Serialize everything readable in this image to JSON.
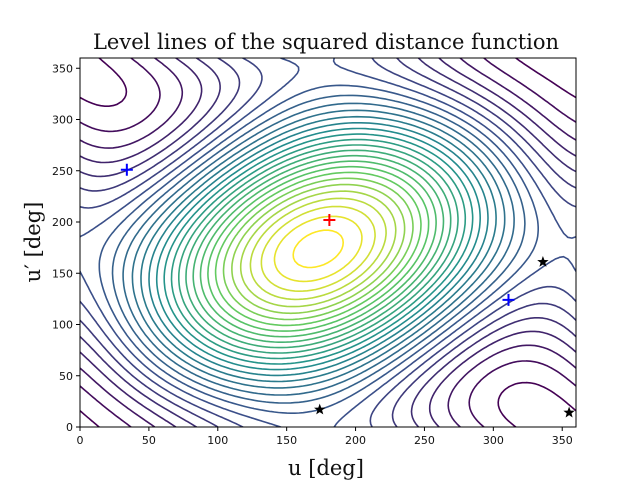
{
  "chart_data": {
    "type": "contour",
    "title": "Level lines of the squared distance function",
    "xlabel": "u [deg]",
    "ylabel": "u′ [deg]",
    "xlim": [
      0,
      360
    ],
    "ylim": [
      0,
      360
    ],
    "xticks": [
      0,
      50,
      100,
      150,
      200,
      250,
      300,
      350
    ],
    "yticks": [
      0,
      50,
      100,
      150,
      200,
      250,
      300,
      350
    ],
    "colormap": [
      "#440154",
      "#3b528b",
      "#21908d",
      "#5dc962",
      "#fde725"
    ],
    "level_count": 30,
    "markers": [
      {
        "name": "maximum",
        "shape": "plus",
        "color": "#ff0000",
        "x": 181,
        "y": 202
      },
      {
        "name": "minimum-upper-left",
        "shape": "plus",
        "color": "#0000ff",
        "x": 34,
        "y": 251
      },
      {
        "name": "minimum-lower-right",
        "shape": "plus",
        "color": "#0000ff",
        "x": 311,
        "y": 124
      },
      {
        "name": "saddle-1",
        "shape": "star",
        "color": "#000000",
        "x": 336,
        "y": 161
      },
      {
        "name": "saddle-2",
        "shape": "star",
        "color": "#000000",
        "x": 174,
        "y": 17
      },
      {
        "name": "saddle-3",
        "shape": "star",
        "color": "#000000",
        "x": 355,
        "y": 14
      }
    ]
  }
}
